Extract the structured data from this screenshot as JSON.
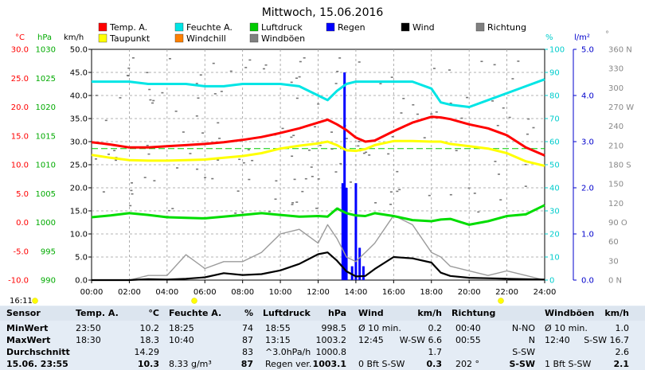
{
  "title": "Mittwoch, 15.06.2016",
  "legend": [
    {
      "label": "Temp. A.",
      "color": "#ff0000"
    },
    {
      "label": "Feuchte A.",
      "color": "#00e5e5"
    },
    {
      "label": "Luftdruck",
      "color": "#00cc00"
    },
    {
      "label": "Regen",
      "color": "#0000ff"
    },
    {
      "label": "Wind",
      "color": "#000000"
    },
    {
      "label": "Richtung",
      "color": "#808080"
    },
    {
      "label": "Taupunkt",
      "color": "#ffff00"
    },
    {
      "label": "Windchill",
      "color": "#ff8000"
    },
    {
      "label": "Windböen",
      "color": "#808080"
    }
  ],
  "axis_units": {
    "temp": "°C",
    "press": "hPa",
    "wind": "km/h",
    "hum": "%",
    "rain": "l/m²",
    "dir": "°"
  },
  "axis_ticks": {
    "temp": [
      "30.0",
      "25.0",
      "20.0",
      "15.0",
      "10.0",
      "5.0",
      "0.0",
      "-5.0",
      "-10.0"
    ],
    "press": [
      "1030",
      "1025",
      "1020",
      "1015",
      "1010",
      "1005",
      "1000",
      "995",
      "990"
    ],
    "wind": [
      "50.0",
      "45.0",
      "40.0",
      "35.0",
      "30.0",
      "25.0",
      "20.0",
      "15.0",
      "10.0",
      "5.0",
      "0.0"
    ],
    "hum": [
      "100",
      "90",
      "80",
      "70",
      "60",
      "50",
      "40",
      "30",
      "20",
      "10",
      "0"
    ],
    "rain": [
      "5.0",
      "4.0",
      "3.0",
      "2.0",
      "1.0",
      "0.0"
    ],
    "dir": [
      "360 N",
      "330",
      "300",
      "270 W",
      "240",
      "210",
      "180 S",
      "150",
      "120",
      "90 O",
      "60",
      "30",
      "0 N"
    ],
    "time": [
      "00:00",
      "02:00",
      "04:00",
      "06:00",
      "08:00",
      "10:00",
      "12:00",
      "14:00",
      "16:00",
      "18:00",
      "20:00",
      "22:00",
      "24:00"
    ]
  },
  "sun_time": "16:11",
  "chart_data": {
    "type": "line",
    "title": "Mittwoch, 15.06.2016",
    "x_hours": [
      0,
      1,
      2,
      3,
      4,
      5,
      6,
      7,
      8,
      9,
      10,
      11,
      12,
      12.5,
      13,
      13.5,
      14,
      14.5,
      15,
      16,
      17,
      18,
      18.5,
      19,
      20,
      21,
      22,
      23,
      24
    ],
    "series": [
      {
        "name": "Temp. A.",
        "unit": "°C",
        "values": [
          13.9,
          13.5,
          13.0,
          13.0,
          13.2,
          13.4,
          13.6,
          13.9,
          14.3,
          14.8,
          15.5,
          16.3,
          17.3,
          17.8,
          17.0,
          16.0,
          14.7,
          14.0,
          14.2,
          15.8,
          17.3,
          18.3,
          18.2,
          17.9,
          17.0,
          16.3,
          15.1,
          13.0,
          11.6
        ]
      },
      {
        "name": "Taupunkt",
        "unit": "°C",
        "values": [
          11.7,
          11.2,
          10.8,
          10.7,
          10.7,
          10.8,
          10.9,
          11.2,
          11.5,
          12.0,
          12.8,
          13.3,
          13.7,
          14.0,
          13.4,
          12.5,
          12.4,
          12.7,
          13.4,
          14.1,
          14.1,
          14.0,
          14.0,
          13.6,
          13.2,
          12.8,
          12.0,
          10.6,
          9.8
        ]
      },
      {
        "name": "Feuchte A.",
        "unit": "%",
        "values": [
          86,
          86,
          86,
          85,
          85,
          85,
          84,
          84,
          85,
          85,
          85,
          84,
          80,
          78,
          82,
          85,
          86,
          86,
          86,
          86,
          86,
          83,
          77,
          76,
          75,
          78,
          81,
          84,
          87
        ]
      },
      {
        "name": "Luftdruck",
        "unit": "hPa",
        "values": [
          1000.9,
          1001.2,
          1001.6,
          1001.3,
          1000.9,
          1000.8,
          1000.7,
          1001.0,
          1001.3,
          1001.6,
          1001.3,
          1001.0,
          1001.1,
          1001.0,
          1002.4,
          1001.6,
          1001.2,
          1001.1,
          1001.6,
          1001.1,
          1000.4,
          1000.2,
          1000.5,
          1000.6,
          999.6,
          1000.2,
          1001.1,
          1001.4,
          1003.0
        ]
      },
      {
        "name": "Wind",
        "unit": "km/h",
        "values": [
          0,
          0,
          0,
          0.2,
          0.1,
          0.3,
          0.6,
          1.5,
          1.1,
          1.3,
          2.1,
          3.5,
          5.6,
          6.0,
          4.2,
          1.9,
          0.8,
          0.9,
          2.4,
          5.0,
          4.7,
          3.8,
          1.6,
          0.9,
          0.5,
          0.4,
          0.3,
          0.2,
          0.1
        ]
      },
      {
        "name": "Windböen",
        "unit": "km/h",
        "values": [
          0,
          0,
          0,
          1.0,
          1.0,
          5.5,
          2.5,
          4.0,
          4.0,
          6.0,
          10.0,
          11.0,
          8.0,
          12.0,
          9.0,
          5.0,
          4.0,
          6.0,
          8.0,
          14.0,
          12.0,
          6.0,
          5.0,
          3.0,
          2.0,
          1.0,
          2.0,
          1.0,
          0
        ]
      }
    ],
    "rain": {
      "name": "Regen",
      "unit": "l/m²",
      "hours": [
        13.3,
        13.4,
        13.5,
        13.8,
        14.0,
        14.2,
        14.4
      ],
      "values": [
        2.1,
        4.5,
        2.0,
        0.3,
        2.1,
        0.7,
        0.3
      ]
    },
    "ylim_temp": [
      -10,
      30
    ],
    "ylim_press": [
      990,
      1030
    ],
    "ylim_wind": [
      0,
      50
    ],
    "ylim_hum": [
      0,
      100
    ],
    "ylim_rain": [
      0,
      5
    ],
    "ylim_dir": [
      0,
      360
    ],
    "xlim": [
      0,
      24
    ],
    "grid": true,
    "legend_position": "top"
  },
  "table": {
    "headers": [
      {
        "label": "Sensor",
        "unit": ""
      },
      {
        "label": "Temp. A.",
        "unit": "°C"
      },
      {
        "label": "Feuchte A.",
        "unit": "%"
      },
      {
        "label": "Luftdruck",
        "unit": "hPa"
      },
      {
        "label": "Wind",
        "unit": "km/h"
      },
      {
        "label": "Richtung",
        "unit": ""
      },
      {
        "label": "Windböen",
        "unit": "km/h"
      }
    ],
    "rows": [
      {
        "label": "MinWert",
        "cells": [
          "23:50",
          "10.2",
          "18:25",
          "74",
          "18:55",
          "998.5",
          "Ø 10 min.",
          "0.2",
          "00:40",
          "N-NO",
          "Ø 10 min.",
          "1.0"
        ]
      },
      {
        "label": "MaxWert",
        "cells": [
          "18:30",
          "18.3",
          "10:40",
          "87",
          "13:15",
          "1003.2",
          "12:45",
          "W-SW 6.6",
          "00:55",
          "N",
          "12:40",
          "S-SW 16.7"
        ]
      },
      {
        "label": "Durchschnitt",
        "cells": [
          "",
          "14.29",
          "",
          "83",
          "^3.0hPa/h",
          "1000.8",
          "",
          "1.7",
          "",
          "S-SW",
          "",
          "2.6"
        ]
      },
      {
        "label": "15.06. 23:55",
        "cells": [
          "",
          "10.3",
          "8.33 g/m³",
          "87",
          "Regen ver.",
          "1003.1",
          "0 Bft S-SW",
          "0.3",
          "202 °",
          "S-SW",
          "1 Bft S-SW",
          "2.1"
        ]
      }
    ]
  }
}
